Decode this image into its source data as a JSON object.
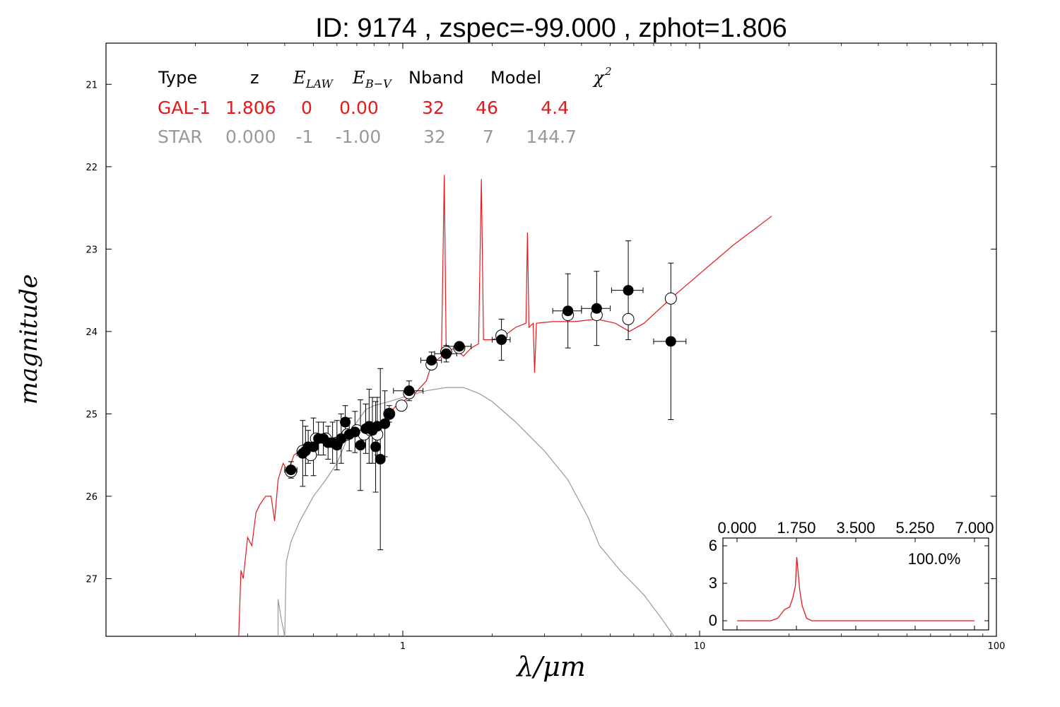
{
  "title": "ID:  9174  , zspec=-99.000 , zphot=1.806",
  "colors": {
    "gal": "#e3191c",
    "star": "#999999",
    "axes": "#000000"
  },
  "legend_table": {
    "headers": [
      "Type",
      "z",
      "E",
      "E",
      "Nband",
      "Model",
      "χ"
    ],
    "header_subscripts": {
      "e_law": "LAW",
      "e_bv": "B−V"
    },
    "chi_superscript": "2",
    "rows": [
      {
        "name": "gal-1",
        "color": "#e3191c",
        "cells": [
          "GAL-1",
          "1.806",
          "0",
          "0.00",
          "32",
          "46",
          "4.4"
        ]
      },
      {
        "name": "star",
        "color": "#999999",
        "cells": [
          "STAR",
          "0.000",
          "-1",
          "-1.00",
          "32",
          "7",
          "144.7"
        ]
      }
    ]
  },
  "chart_data": [
    {
      "type": "scatter",
      "xscale": "log",
      "xlim": [
        0.1,
        100
      ],
      "ylim": [
        27.7,
        20.5
      ],
      "y_inverted": true,
      "xlabel": "λ/μm",
      "ylabel": "magnitude",
      "x_ticks": [
        1,
        10,
        100
      ],
      "x_tick_labels": [
        "1",
        "10",
        "100"
      ],
      "y_ticks": [
        21,
        22,
        23,
        24,
        25,
        26,
        27
      ],
      "y_tick_labels": [
        "21",
        "22",
        "23",
        "24",
        "25",
        "26",
        "27"
      ],
      "series": [
        {
          "kind": "line",
          "color": "#e3191c",
          "points": [
            [
              0.28,
              27.7
            ],
            [
              0.285,
              26.9
            ],
            [
              0.29,
              27.0
            ],
            [
              0.3,
              26.5
            ],
            [
              0.31,
              26.6
            ],
            [
              0.32,
              26.2
            ],
            [
              0.33,
              26.1
            ],
            [
              0.345,
              26.0
            ],
            [
              0.36,
              26.0
            ],
            [
              0.37,
              26.3
            ],
            [
              0.38,
              25.8
            ],
            [
              0.395,
              25.6
            ],
            [
              0.41,
              25.7
            ],
            [
              0.43,
              25.5
            ],
            [
              0.45,
              25.45
            ],
            [
              0.47,
              25.4
            ],
            [
              0.5,
              25.35
            ],
            [
              0.53,
              25.3
            ],
            [
              0.56,
              25.32
            ],
            [
              0.6,
              25.35
            ],
            [
              0.63,
              25.28
            ],
            [
              0.66,
              25.3
            ],
            [
              0.7,
              25.25
            ],
            [
              0.73,
              25.3
            ],
            [
              0.76,
              25.2
            ],
            [
              0.79,
              25.25
            ],
            [
              0.82,
              25.15
            ],
            [
              0.86,
              25.1
            ],
            [
              0.9,
              25.0
            ],
            [
              0.95,
              24.9
            ],
            [
              1.0,
              24.85
            ],
            [
              1.1,
              24.75
            ],
            [
              1.2,
              24.6
            ],
            [
              1.25,
              24.4
            ],
            [
              1.3,
              24.35
            ],
            [
              1.35,
              24.3
            ],
            [
              1.38,
              22.1
            ],
            [
              1.4,
              24.25
            ],
            [
              1.5,
              24.2
            ],
            [
              1.6,
              24.3
            ],
            [
              1.7,
              24.2
            ],
            [
              1.8,
              24.15
            ],
            [
              1.84,
              22.15
            ],
            [
              1.87,
              24.1
            ],
            [
              2.0,
              24.1
            ],
            [
              2.2,
              24.05
            ],
            [
              2.4,
              23.95
            ],
            [
              2.6,
              23.9
            ],
            [
              2.63,
              22.8
            ],
            [
              2.66,
              23.95
            ],
            [
              2.75,
              23.9
            ],
            [
              2.78,
              24.5
            ],
            [
              2.82,
              23.9
            ],
            [
              3.2,
              23.88
            ],
            [
              3.8,
              23.88
            ],
            [
              4.5,
              23.85
            ],
            [
              5.2,
              23.9
            ],
            [
              5.8,
              24.0
            ],
            [
              6.5,
              23.9
            ],
            [
              8.0,
              23.6
            ],
            [
              10.0,
              23.3
            ],
            [
              13.0,
              22.95
            ],
            [
              17.5,
              22.6
            ]
          ]
        },
        {
          "kind": "line",
          "color": "#999999",
          "points": [
            [
              0.38,
              27.7
            ],
            [
              0.38,
              27.25
            ],
            [
              0.39,
              27.5
            ],
            [
              0.4,
              27.7
            ],
            [
              0.405,
              26.8
            ],
            [
              0.42,
              26.55
            ],
            [
              0.45,
              26.3
            ],
            [
              0.5,
              26.0
            ],
            [
              0.55,
              25.8
            ],
            [
              0.6,
              25.6
            ],
            [
              0.65,
              25.3
            ],
            [
              0.7,
              25.1
            ],
            [
              0.75,
              24.95
            ],
            [
              0.8,
              24.9
            ],
            [
              0.9,
              24.85
            ],
            [
              1.0,
              24.8
            ],
            [
              1.2,
              24.72
            ],
            [
              1.4,
              24.68
            ],
            [
              1.6,
              24.68
            ],
            [
              1.8,
              24.75
            ],
            [
              2.0,
              24.85
            ],
            [
              2.4,
              25.1
            ],
            [
              3.0,
              25.45
            ],
            [
              3.6,
              25.8
            ],
            [
              4.2,
              26.25
            ],
            [
              4.6,
              26.6
            ],
            [
              5.4,
              26.9
            ],
            [
              6.5,
              27.2
            ],
            [
              7.5,
              27.5
            ],
            [
              8.2,
              27.7
            ]
          ]
        },
        {
          "kind": "points-open",
          "color": "#000000",
          "points": [
            [
              0.42,
              25.7
            ],
            [
              0.46,
              25.45
            ],
            [
              0.49,
              25.5
            ],
            [
              0.51,
              25.3
            ],
            [
              0.55,
              25.3
            ],
            [
              0.6,
              25.35
            ],
            [
              0.65,
              25.25
            ],
            [
              0.7,
              25.2
            ],
            [
              0.74,
              25.25
            ],
            [
              0.78,
              25.2
            ],
            [
              0.82,
              25.25
            ],
            [
              0.9,
              25.0
            ],
            [
              0.99,
              24.9
            ],
            [
              1.05,
              24.75
            ],
            [
              1.25,
              24.4
            ],
            [
              1.4,
              24.25
            ],
            [
              1.55,
              24.2
            ],
            [
              2.15,
              24.05
            ],
            [
              3.6,
              23.8
            ],
            [
              4.5,
              23.8
            ],
            [
              5.75,
              23.85
            ],
            [
              8.0,
              23.6
            ]
          ]
        },
        {
          "kind": "points-filled",
          "color": "#000000",
          "points": [
            {
              "x": 0.42,
              "y": 25.68,
              "yerr": 0.1,
              "xerr": 0.02
            },
            {
              "x": 0.46,
              "y": 25.48,
              "yerr": 0.4,
              "xerr": 0.02
            },
            {
              "x": 0.47,
              "y": 25.45,
              "yerr": 0.3,
              "xerr": 0.02
            },
            {
              "x": 0.48,
              "y": 25.4,
              "yerr": 0.2,
              "xerr": 0.02
            },
            {
              "x": 0.5,
              "y": 25.4,
              "yerr": 0.35,
              "xerr": 0.02
            },
            {
              "x": 0.52,
              "y": 25.3,
              "yerr": 0.2,
              "xerr": 0.02
            },
            {
              "x": 0.54,
              "y": 25.3,
              "yerr": 0.2,
              "xerr": 0.02
            },
            {
              "x": 0.56,
              "y": 25.35,
              "yerr": 0.2,
              "xerr": 0.02
            },
            {
              "x": 0.58,
              "y": 25.35,
              "yerr": 0.25,
              "xerr": 0.02
            },
            {
              "x": 0.6,
              "y": 25.38,
              "yerr": 0.3,
              "xerr": 0.02
            },
            {
              "x": 0.62,
              "y": 25.3,
              "yerr": 0.3,
              "xerr": 0.02
            },
            {
              "x": 0.64,
              "y": 25.1,
              "yerr": 0.2,
              "xerr": 0.02
            },
            {
              "x": 0.66,
              "y": 25.25,
              "yerr": 0.2,
              "xerr": 0.02
            },
            {
              "x": 0.69,
              "y": 25.22,
              "yerr": 0.25,
              "xerr": 0.02
            },
            {
              "x": 0.72,
              "y": 25.38,
              "yerr": 0.55,
              "xerr": 0.02
            },
            {
              "x": 0.75,
              "y": 25.18,
              "yerr": 0.3,
              "xerr": 0.02
            },
            {
              "x": 0.77,
              "y": 25.15,
              "yerr": 0.45,
              "xerr": 0.02
            },
            {
              "x": 0.79,
              "y": 25.2,
              "yerr": 0.4,
              "xerr": 0.02
            },
            {
              "x": 0.81,
              "y": 25.4,
              "yerr": 0.55,
              "xerr": 0.02
            },
            {
              "x": 0.82,
              "y": 25.15,
              "yerr": 0.35,
              "xerr": 0.02
            },
            {
              "x": 0.84,
              "y": 25.55,
              "yerr": 1.1,
              "xerr": 0.02
            },
            {
              "x": 0.87,
              "y": 25.12,
              "yerr": 0.4,
              "xerr": 0.02
            },
            {
              "x": 0.9,
              "y": 25.0,
              "yerr": 0.1,
              "xerr": 0.03
            },
            {
              "x": 1.05,
              "y": 24.72,
              "yerr": 0.12,
              "xerr": 0.12
            },
            {
              "x": 1.25,
              "y": 24.35,
              "yerr": 0.1,
              "xerr": 0.1
            },
            {
              "x": 1.4,
              "y": 24.27,
              "yerr": 0.1,
              "xerr": 0.12
            },
            {
              "x": 1.55,
              "y": 24.18,
              "yerr": 0.05,
              "xerr": 0.15
            },
            {
              "x": 2.15,
              "y": 24.1,
              "yerr": 0.25,
              "xerr": 0.15
            },
            {
              "x": 3.6,
              "y": 23.75,
              "yerr": 0.45,
              "xerr": 0.4
            },
            {
              "x": 4.5,
              "y": 23.72,
              "yerr": 0.45,
              "xerr": 0.5
            },
            {
              "x": 5.75,
              "y": 23.5,
              "yerr": 0.6,
              "xerr": 0.7
            },
            {
              "x": 8.0,
              "y": 24.12,
              "yerr": 0.95,
              "xerr": 1.0
            }
          ]
        }
      ]
    },
    {
      "type": "line",
      "xlim": [
        0,
        7
      ],
      "ylim": [
        -0.5,
        7
      ],
      "x_ticks": [
        0.0,
        1.75,
        3.5,
        5.25,
        7.0
      ],
      "x_tick_labels": [
        "0.000",
        "1.750",
        "3.500",
        "5.250",
        "7.000"
      ],
      "y_ticks": [
        0,
        3,
        6
      ],
      "y_tick_labels": [
        "0",
        "3",
        "6"
      ],
      "annotation": "100.0%",
      "series": [
        {
          "color": "#e3191c",
          "points": [
            [
              0.0,
              0
            ],
            [
              1.0,
              0
            ],
            [
              1.2,
              0.2
            ],
            [
              1.4,
              0.9
            ],
            [
              1.55,
              1.1
            ],
            [
              1.65,
              1.9
            ],
            [
              1.72,
              2.8
            ],
            [
              1.76,
              5.1
            ],
            [
              1.8,
              3.9
            ],
            [
              1.85,
              2.4
            ],
            [
              1.92,
              1.2
            ],
            [
              2.05,
              0.2
            ],
            [
              2.2,
              0
            ],
            [
              7.0,
              0
            ]
          ]
        }
      ]
    }
  ]
}
